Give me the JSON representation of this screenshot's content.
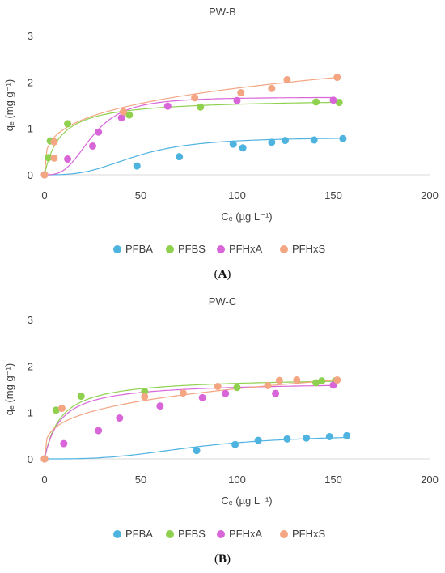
{
  "chart_data": [
    {
      "type": "scatter",
      "title": "PW-B",
      "panel_label": "A",
      "xlabel": "Cₑ (µg L⁻¹)",
      "ylabel": "qₑ (mg g⁻¹)",
      "xlim": [
        0,
        200
      ],
      "ylim": [
        0,
        3
      ],
      "xticks": [
        "0",
        "50",
        "100",
        "150",
        "200"
      ],
      "yticks": [
        "0",
        "1",
        "2",
        "3"
      ],
      "grid": false,
      "legend": "bottom",
      "series": [
        {
          "name": "PFBA",
          "color": "#4fb3e0",
          "points": [
            [
              0,
              0
            ],
            [
              48,
              0.19
            ],
            [
              70,
              0.39
            ],
            [
              98,
              0.66
            ],
            [
              103,
              0.58
            ],
            [
              118,
              0.7
            ],
            [
              125,
              0.74
            ],
            [
              140,
              0.75
            ],
            [
              155,
              0.78
            ]
          ],
          "fit": "sigmoid"
        },
        {
          "name": "PFBS",
          "color": "#8fd14f",
          "points": [
            [
              0,
              0
            ],
            [
              2,
              0.37
            ],
            [
              3,
              0.73
            ],
            [
              12,
              1.1
            ],
            [
              44,
              1.29
            ],
            [
              81,
              1.46
            ],
            [
              141,
              1.57
            ],
            [
              153,
              1.56
            ]
          ],
          "fit": "langmuir"
        },
        {
          "name": "PFHxA",
          "color": "#d966d9",
          "points": [
            [
              0,
              0
            ],
            [
              12,
              0.34
            ],
            [
              25,
              0.62
            ],
            [
              28,
              0.92
            ],
            [
              40,
              1.23
            ],
            [
              64,
              1.48
            ],
            [
              100,
              1.6
            ],
            [
              150,
              1.61
            ]
          ],
          "fit": "sigmoid"
        },
        {
          "name": "PFHxS",
          "color": "#f4a582",
          "points": [
            [
              0,
              0
            ],
            [
              5,
              0.36
            ],
            [
              5,
              0.71
            ],
            [
              41,
              1.36
            ],
            [
              78,
              1.66
            ],
            [
              102,
              1.77
            ],
            [
              118,
              1.86
            ],
            [
              126,
              2.05
            ],
            [
              152,
              2.1
            ]
          ],
          "fit": "freundlich"
        }
      ]
    },
    {
      "type": "scatter",
      "title": "PW-C",
      "panel_label": "B",
      "xlabel": "Cₑ (µg L⁻¹)",
      "ylabel": "qₑ (mg g⁻¹)",
      "xlim": [
        0,
        200
      ],
      "ylim": [
        0,
        3
      ],
      "xticks": [
        "0",
        "50",
        "100",
        "150",
        "200"
      ],
      "yticks": [
        "0",
        "1",
        "2",
        "3"
      ],
      "grid": false,
      "legend": "bottom",
      "series": [
        {
          "name": "PFBA",
          "color": "#4fb3e0",
          "points": [
            [
              0,
              0
            ],
            [
              79,
              0.18
            ],
            [
              99,
              0.31
            ],
            [
              111,
              0.4
            ],
            [
              126,
              0.43
            ],
            [
              136,
              0.45
            ],
            [
              148,
              0.48
            ],
            [
              157,
              0.5
            ]
          ],
          "fit": "sigmoid"
        },
        {
          "name": "PFBS",
          "color": "#8fd14f",
          "points": [
            [
              0,
              0
            ],
            [
              6,
              1.05
            ],
            [
              19,
              1.35
            ],
            [
              52,
              1.45
            ],
            [
              100,
              1.54
            ],
            [
              141,
              1.64
            ],
            [
              144,
              1.68
            ],
            [
              151,
              1.68
            ]
          ],
          "fit": "langmuir"
        },
        {
          "name": "PFHxA",
          "color": "#d966d9",
          "points": [
            [
              0,
              0
            ],
            [
              10,
              0.33
            ],
            [
              28,
              0.61
            ],
            [
              39,
              0.88
            ],
            [
              60,
              1.14
            ],
            [
              82,
              1.32
            ],
            [
              94,
              1.41
            ],
            [
              120,
              1.41
            ],
            [
              150,
              1.59
            ]
          ],
          "fit": "langmuir"
        },
        {
          "name": "PFHxS",
          "color": "#f4a582",
          "points": [
            [
              0,
              0
            ],
            [
              9,
              1.09
            ],
            [
              52,
              1.34
            ],
            [
              72,
              1.42
            ],
            [
              90,
              1.56
            ],
            [
              116,
              1.58
            ],
            [
              122,
              1.69
            ],
            [
              131,
              1.7
            ],
            [
              152,
              1.7
            ]
          ],
          "fit": "freundlich"
        }
      ]
    }
  ]
}
